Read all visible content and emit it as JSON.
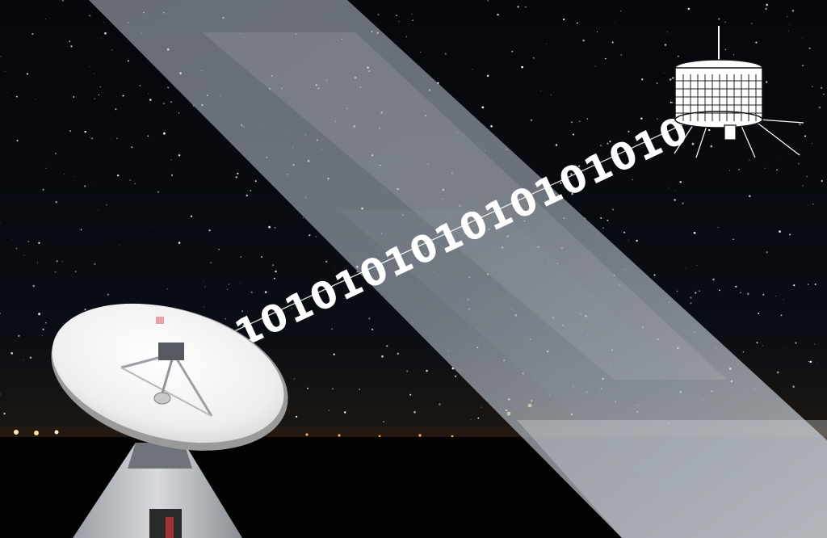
{
  "image": {
    "caption": "",
    "binary_stream": [
      "1",
      "0",
      "1",
      "0",
      "1",
      "0",
      "1",
      "0",
      "1",
      "0",
      "1",
      "0",
      "1",
      "0",
      "1",
      "0",
      "1",
      "0"
    ]
  },
  "palette": {
    "sky_top": "#05070c",
    "sky_horizon": "#1a1410",
    "ground": "#030303",
    "beam": "#c9cfd6",
    "dish": "#f2f2f2"
  }
}
